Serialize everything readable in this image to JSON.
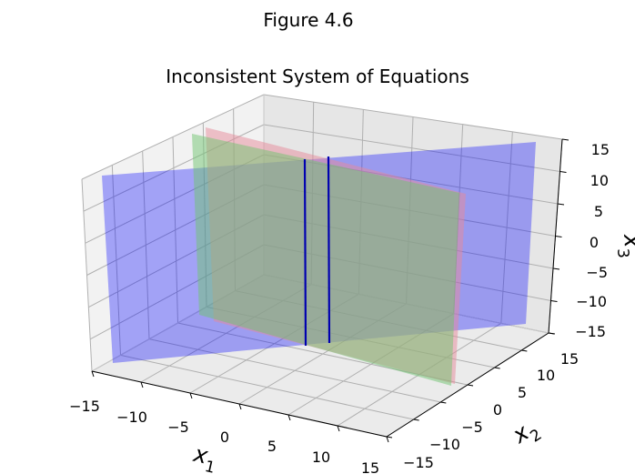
{
  "figure_title": "Figure 4.6",
  "chart_data": {
    "type": "surface3d",
    "title": "Inconsistent System of Equations",
    "xlabel": {
      "main": "x",
      "sub": "1"
    },
    "ylabel": {
      "main": "x",
      "sub": "2"
    },
    "zlabel": {
      "main": "x",
      "sub": "3"
    },
    "x_ticks": [
      "−15",
      "−10",
      "−5",
      "0",
      "5",
      "10",
      "15"
    ],
    "y_ticks": [
      "−15",
      "−10",
      "−5",
      "0",
      "5",
      "10",
      "15"
    ],
    "z_ticks": [
      "−15",
      "−10",
      "−5",
      "0",
      "5",
      "10",
      "15"
    ],
    "xlim": [
      -15,
      15
    ],
    "ylim": [
      -15,
      15
    ],
    "zlim": [
      -15,
      15
    ],
    "grid": true,
    "planes": [
      {
        "color": "#0000ff",
        "opacity": 0.33
      },
      {
        "color": "#e58a9a",
        "opacity": 0.5
      },
      {
        "color": "#6fc46f",
        "opacity": 0.5
      }
    ],
    "intersection_lines": {
      "count": 2,
      "color": "#0000b0"
    }
  }
}
